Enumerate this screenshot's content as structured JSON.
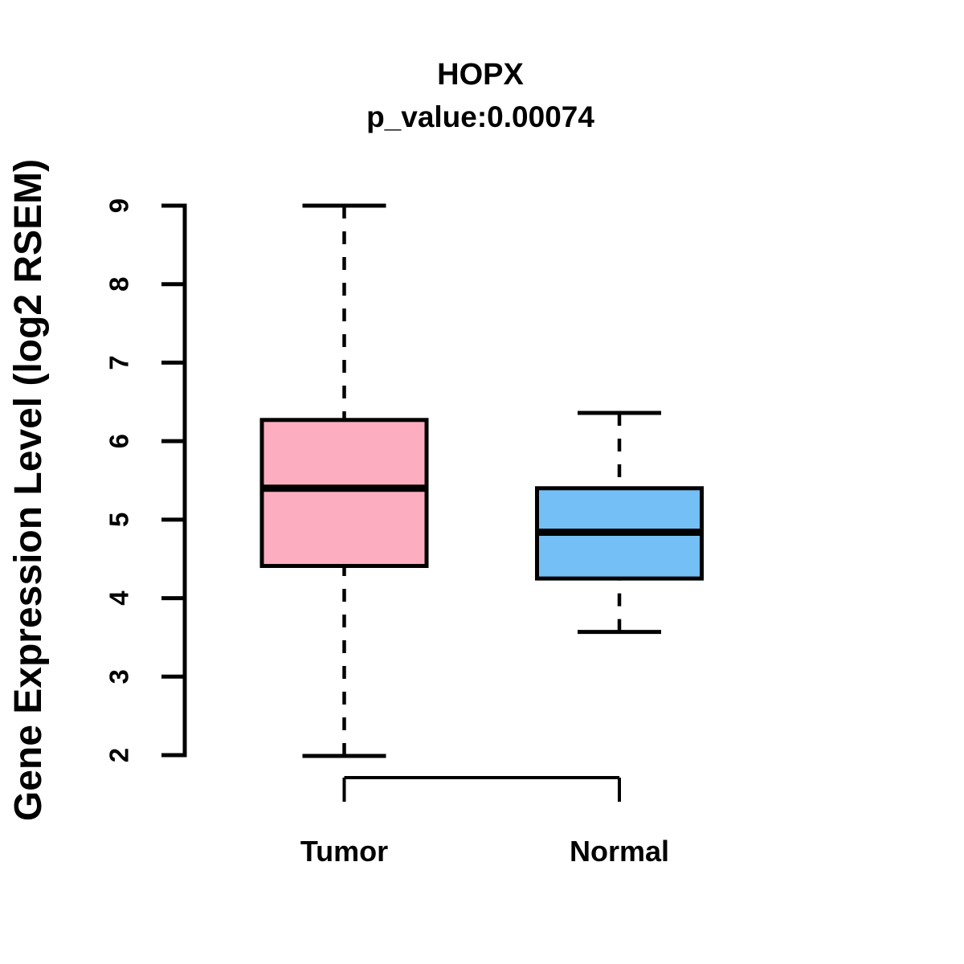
{
  "chart_data": {
    "type": "boxplot",
    "title": "HOPX",
    "subtitle": "p_value:0.00074",
    "ylabel": "Gene Expression Level (log2 RSEM)",
    "xlabel": "",
    "ylim": [
      2,
      9
    ],
    "yticks": [
      2,
      3,
      4,
      5,
      6,
      7,
      8,
      9
    ],
    "categories": [
      "Tumor",
      "Normal"
    ],
    "series": [
      {
        "name": "Tumor",
        "fill_color": "#FCAEC0",
        "whisker_low": 1.99,
        "q1": 4.41,
        "median": 5.4,
        "q3": 6.27,
        "whisker_high": 9.0
      },
      {
        "name": "Normal",
        "fill_color": "#74BFF5",
        "whisker_low": 3.57,
        "q1": 4.25,
        "median": 4.84,
        "q3": 5.4,
        "whisker_high": 6.36
      }
    ],
    "line_color": "#000000",
    "background_color": "#FFFFFF",
    "grid": false,
    "legend_position": "none",
    "whisker_style": "dashed"
  }
}
